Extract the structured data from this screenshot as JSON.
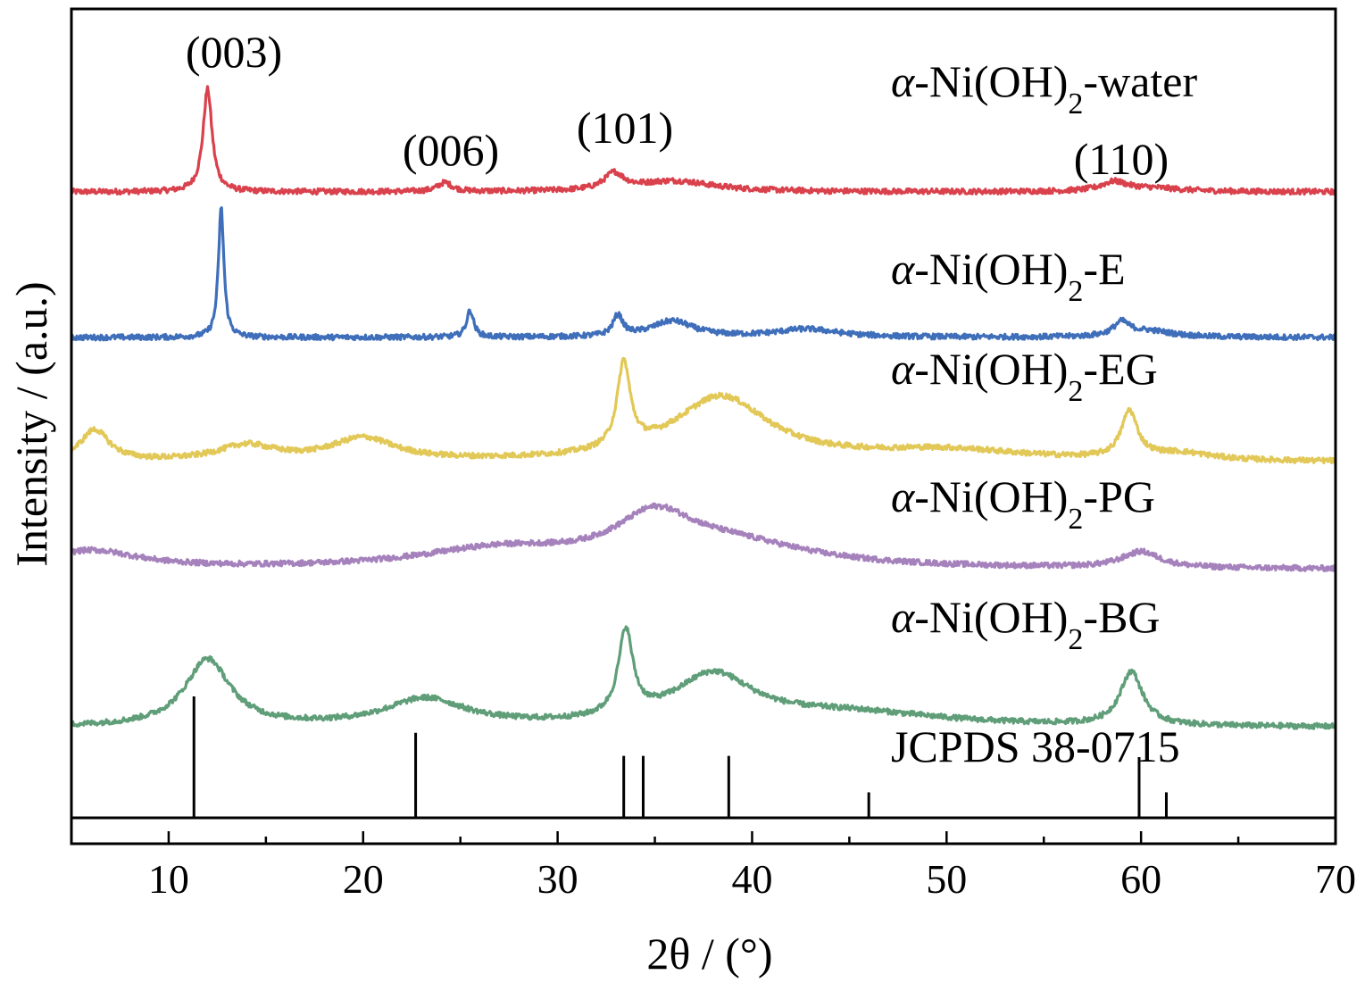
{
  "chart_data": {
    "type": "line",
    "title": "",
    "xlabel": "2θ / (°)",
    "ylabel": "Intensity / (a.u.)",
    "xlim": [
      5,
      70
    ],
    "x_ticks": [
      10,
      20,
      30,
      40,
      50,
      60,
      70
    ],
    "x_minor_step": 5,
    "y_ticks": "none",
    "grid": false,
    "legend": "inline labels at right",
    "series": [
      {
        "name": "α-Ni(OH)2-water",
        "color": "#d9414c",
        "baseline": 18,
        "peaks": [
          {
            "x": 12.0,
            "h": 115,
            "w": 0.28
          },
          {
            "x": 24.2,
            "h": 10,
            "w": 0.45
          },
          {
            "x": 32.9,
            "h": 18,
            "w": 0.6
          },
          {
            "x": 36.0,
            "h": 12,
            "w": 2.5
          },
          {
            "x": 58.6,
            "h": 10,
            "w": 0.8
          },
          {
            "x": 60.5,
            "h": 4,
            "w": 2.0
          }
        ]
      },
      {
        "name": "α-Ni(OH)2-E",
        "color": "#3f6fba",
        "baseline": 5,
        "peaks": [
          {
            "x": 12.7,
            "h": 145,
            "w": 0.17
          },
          {
            "x": 25.5,
            "h": 30,
            "w": 0.22
          },
          {
            "x": 33.1,
            "h": 23,
            "w": 0.3
          },
          {
            "x": 35.9,
            "h": 18,
            "w": 1.3
          },
          {
            "x": 42.8,
            "h": 9,
            "w": 2.0
          },
          {
            "x": 59.0,
            "h": 15,
            "w": 0.5
          },
          {
            "x": 60.4,
            "h": 7,
            "w": 1.5
          }
        ]
      },
      {
        "name": "α-Ni(OH)2-EG",
        "color": "#e2c857",
        "baseline": 25,
        "peaks": [
          {
            "x": 6.2,
            "h": 35,
            "w": 0.9
          },
          {
            "x": 14.0,
            "h": 17,
            "w": 1.8
          },
          {
            "x": 20.0,
            "h": 25,
            "w": 2.0
          },
          {
            "x": 33.4,
            "h": 95,
            "w": 0.4
          },
          {
            "x": 38.4,
            "h": 72,
            "w": 3.0
          },
          {
            "x": 50.0,
            "h": 12,
            "w": 5.0
          },
          {
            "x": 59.4,
            "h": 52,
            "w": 0.5
          },
          {
            "x": 62.0,
            "h": 8,
            "w": 2.0
          }
        ]
      },
      {
        "name": "α-Ni(OH)2-PG",
        "color": "#a682bd",
        "baseline": 30,
        "peaks": [
          {
            "x": 6.0,
            "h": 20,
            "w": 3.0
          },
          {
            "x": 27.0,
            "h": 20,
            "w": 5.0
          },
          {
            "x": 35.0,
            "h": 50,
            "w": 2.5
          },
          {
            "x": 39.0,
            "h": 25,
            "w": 5.0
          },
          {
            "x": 60.0,
            "h": 18,
            "w": 1.2
          }
        ]
      },
      {
        "name": "α-Ni(OH)2-BG",
        "color": "#5f9e78",
        "baseline": 22,
        "peaks": [
          {
            "x": 12.0,
            "h": 75,
            "w": 1.4
          },
          {
            "x": 23.2,
            "h": 30,
            "w": 2.5
          },
          {
            "x": 33.5,
            "h": 95,
            "w": 0.45
          },
          {
            "x": 38.0,
            "h": 55,
            "w": 2.5
          },
          {
            "x": 45.0,
            "h": 15,
            "w": 6.0
          },
          {
            "x": 59.5,
            "h": 60,
            "w": 0.7
          }
        ]
      }
    ],
    "reference": {
      "name": "JCPDS 38-0715",
      "lines": [
        {
          "x": 11.3,
          "h": 100
        },
        {
          "x": 22.7,
          "h": 70
        },
        {
          "x": 33.4,
          "h": 51
        },
        {
          "x": 34.4,
          "h": 51
        },
        {
          "x": 38.8,
          "h": 51
        },
        {
          "x": 46.0,
          "h": 21
        },
        {
          "x": 59.9,
          "h": 50
        },
        {
          "x": 61.3,
          "h": 21
        }
      ]
    },
    "peak_labels": [
      {
        "text": "(003)",
        "x": 12.0
      },
      {
        "text": "(006)",
        "x": 24.2
      },
      {
        "text": "(101)",
        "x": 33.4
      },
      {
        "text": "(110)",
        "x": 59.9
      }
    ]
  }
}
